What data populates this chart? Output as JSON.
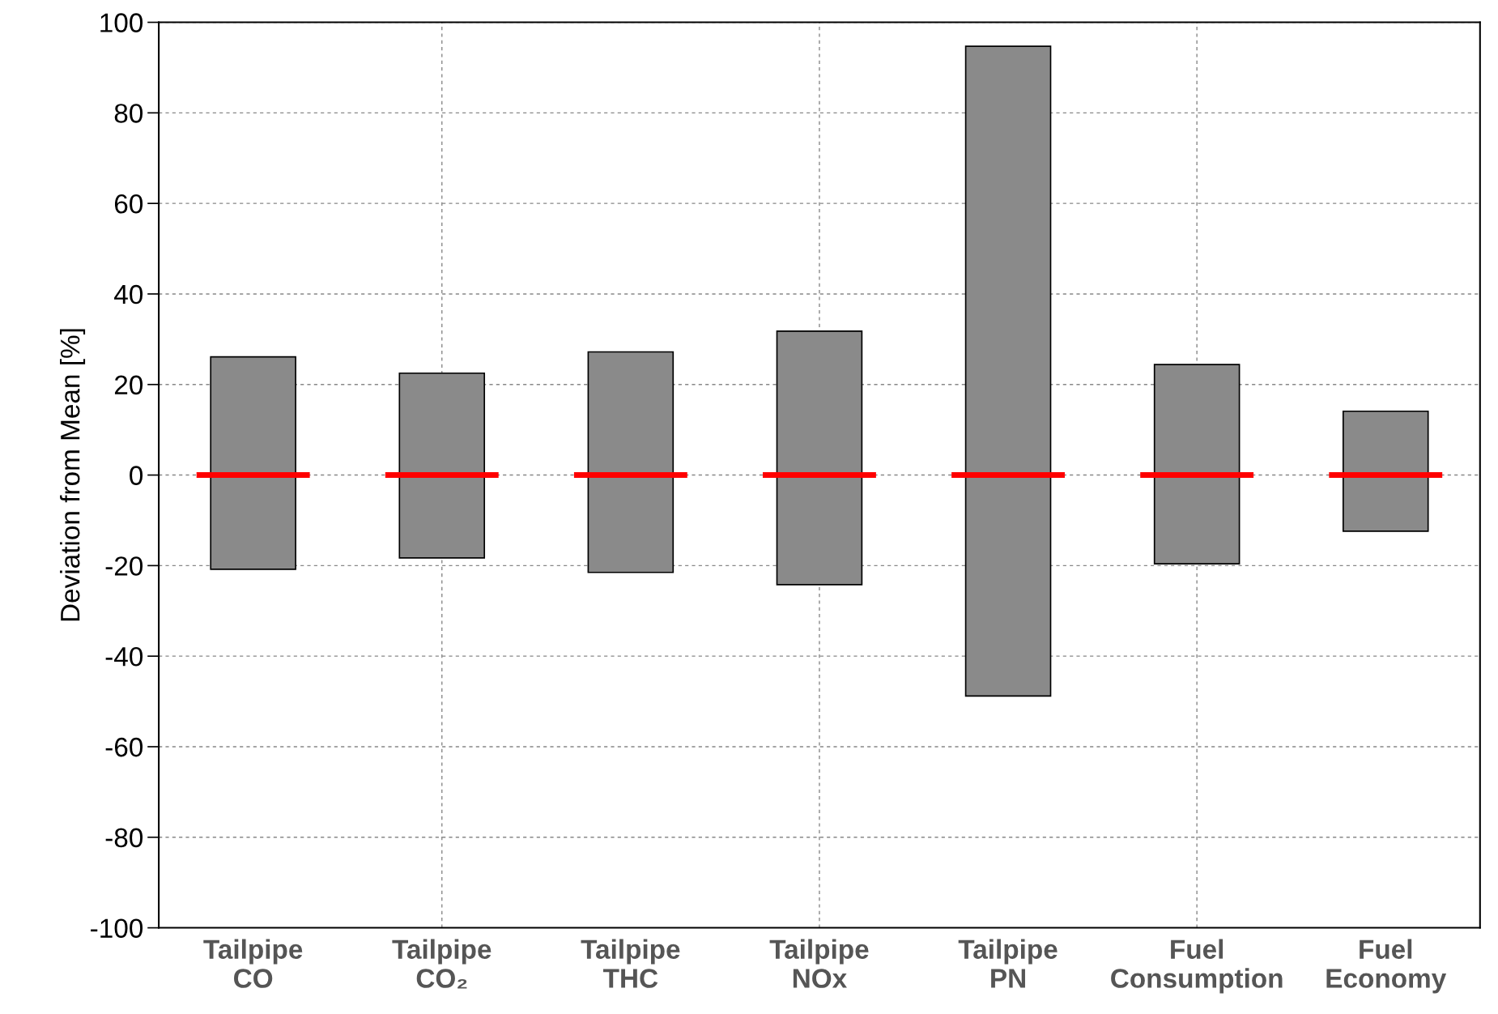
{
  "chart_data": {
    "type": "bar",
    "ylabel": "Deviation from Mean [%]",
    "categories": [
      "Tailpipe\nCO",
      "Tailpipe\nCO₂",
      "Tailpipe\nTHC",
      "Tailpipe\nNOx",
      "Tailpipe\nPN",
      "Fuel\nConsumption",
      "Fuel\nEconomy"
    ],
    "series": [
      {
        "color": "#8a8a8a",
        "base": [
          -20.8,
          -18.3,
          -21.5,
          -24.2,
          -48.8,
          -19.6,
          -12.4
        ],
        "values": [
          46.9,
          40.8,
          48.7,
          56.0,
          143.5,
          44.0,
          26.5
        ]
      }
    ],
    "ref_lines": [
      {
        "axis": "y",
        "value": 0,
        "color": "#ff0000",
        "line_style": "dashed"
      }
    ],
    "ylim": [
      -100,
      100
    ],
    "yticks": [
      -100,
      -80,
      -60,
      -40,
      -20,
      0,
      20,
      40,
      60,
      80,
      100
    ],
    "grid": true
  }
}
